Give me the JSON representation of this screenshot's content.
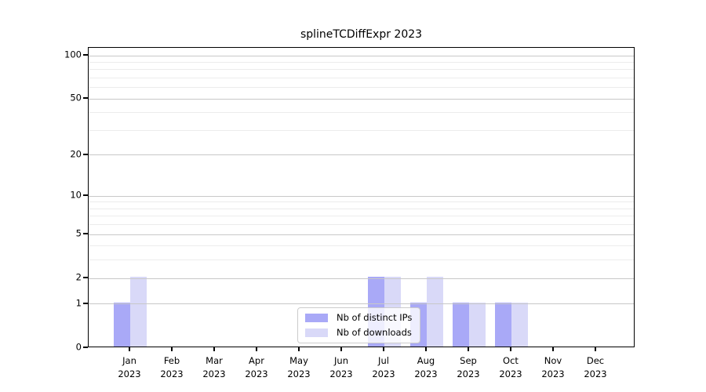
{
  "chart_data": {
    "type": "bar",
    "title": "splineTCDiffExpr 2023",
    "categories": [
      "Jan",
      "Feb",
      "Mar",
      "Apr",
      "May",
      "Jun",
      "Jul",
      "Aug",
      "Sep",
      "Oct",
      "Nov",
      "Dec"
    ],
    "year": "2023",
    "series": [
      {
        "name": "Nb of distinct IPs",
        "color": "#a9a9f7",
        "values": [
          1,
          0,
          0,
          0,
          0,
          0,
          2,
          1,
          1,
          1,
          0,
          0
        ]
      },
      {
        "name": "Nb of downloads",
        "color": "#d9d9f8",
        "values": [
          2,
          0,
          0,
          0,
          0,
          0,
          2,
          2,
          1,
          1,
          0,
          0
        ]
      }
    ],
    "yscale": "log1p",
    "ylim": [
      0,
      113
    ],
    "y_ticks": [
      0,
      1,
      2,
      5,
      10,
      20,
      50,
      100
    ],
    "y_minor_ticks": [
      3,
      4,
      6,
      7,
      8,
      9,
      30,
      40,
      60,
      70,
      80,
      90
    ],
    "grid": "horizontal",
    "legend_position": "lower-center-inside",
    "colors": {
      "major_grid": "#c8c8c8",
      "minor_grid": "#ececec",
      "spine": "#000000",
      "background": "#ffffff"
    }
  }
}
